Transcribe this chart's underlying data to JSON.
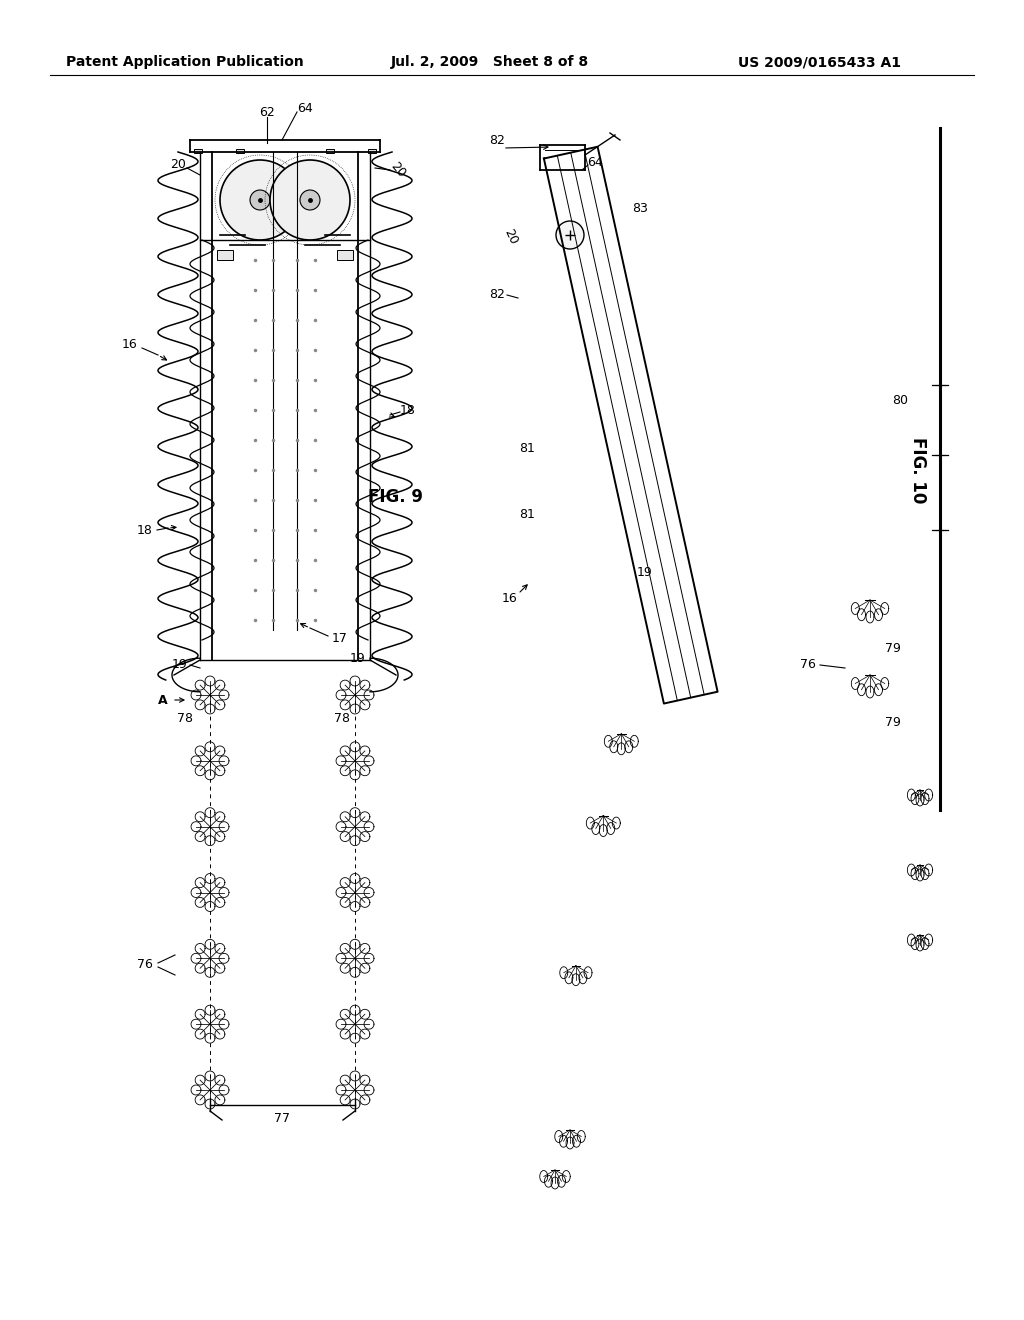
{
  "background_color": "#ffffff",
  "header_left": "Patent Application Publication",
  "header_center": "Jul. 2, 2009   Sheet 8 of 8",
  "header_right": "US 2009/0165433 A1",
  "fig9_label": "FIG. 9",
  "fig10_label": "FIG. 10",
  "line_color": "#000000",
  "text_color": "#000000"
}
